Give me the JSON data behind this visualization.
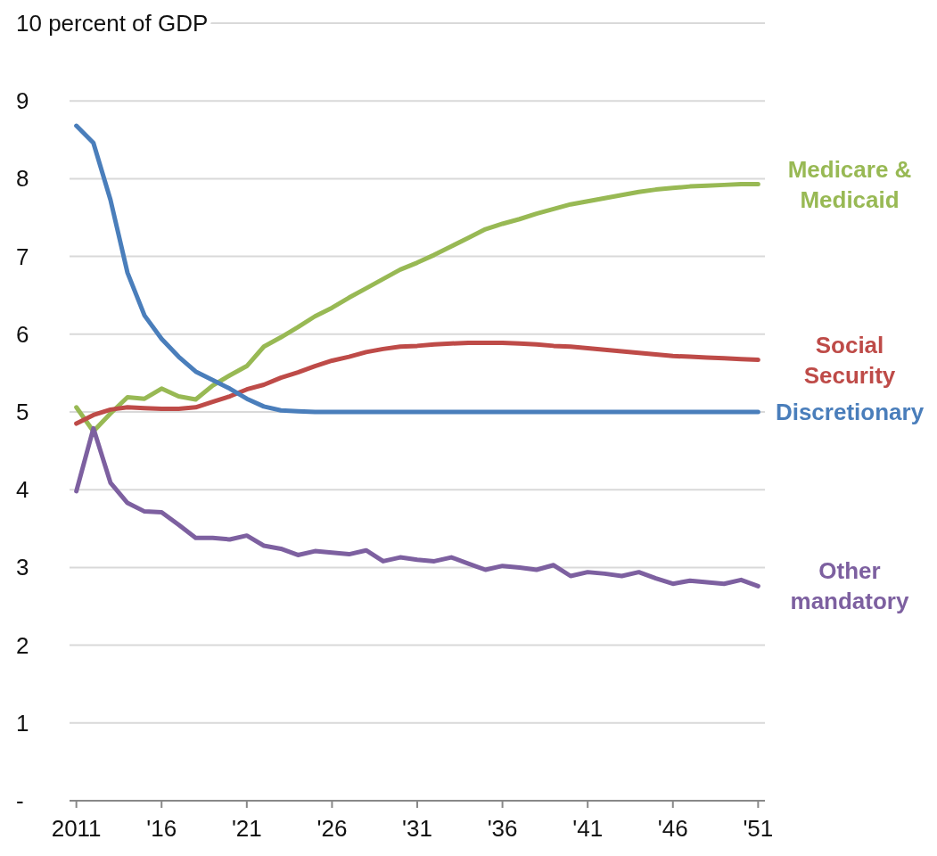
{
  "chart_data": {
    "type": "line",
    "x": [
      2011,
      2012,
      2013,
      2014,
      2015,
      2016,
      2017,
      2018,
      2019,
      2020,
      2021,
      2022,
      2023,
      2024,
      2025,
      2026,
      2027,
      2028,
      2029,
      2030,
      2031,
      2032,
      2033,
      2034,
      2035,
      2036,
      2037,
      2038,
      2039,
      2040,
      2041,
      2042,
      2043,
      2044,
      2045,
      2046,
      2047,
      2048,
      2049,
      2050,
      2051
    ],
    "series": [
      {
        "name": "Medicare & Medicaid",
        "color": "#98b954",
        "values": [
          5.06,
          4.75,
          4.98,
          5.19,
          5.17,
          5.3,
          5.2,
          5.16,
          5.34,
          5.47,
          5.59,
          5.84,
          5.96,
          6.09,
          6.23,
          6.34,
          6.47,
          6.59,
          6.71,
          6.83,
          6.92,
          7.02,
          7.13,
          7.24,
          7.35,
          7.42,
          7.48,
          7.55,
          7.61,
          7.67,
          7.71,
          7.75,
          7.79,
          7.83,
          7.86,
          7.88,
          7.9,
          7.91,
          7.92,
          7.93,
          7.93
        ]
      },
      {
        "name": "Social Security",
        "color": "#be4b48",
        "values": [
          4.85,
          4.96,
          5.03,
          5.06,
          5.05,
          5.04,
          5.04,
          5.06,
          5.13,
          5.2,
          5.29,
          5.35,
          5.44,
          5.51,
          5.59,
          5.66,
          5.71,
          5.77,
          5.81,
          5.84,
          5.85,
          5.87,
          5.88,
          5.89,
          5.89,
          5.89,
          5.88,
          5.87,
          5.85,
          5.84,
          5.82,
          5.8,
          5.78,
          5.76,
          5.74,
          5.72,
          5.71,
          5.7,
          5.69,
          5.68,
          5.67
        ]
      },
      {
        "name": "Discretionary",
        "color": "#4a7ebb",
        "values": [
          8.68,
          8.46,
          7.73,
          6.79,
          6.24,
          5.94,
          5.71,
          5.52,
          5.41,
          5.3,
          5.17,
          5.07,
          5.02,
          5.01,
          5.0,
          5.0,
          5.0,
          5.0,
          5.0,
          5.0,
          5.0,
          5.0,
          5.0,
          5.0,
          5.0,
          5.0,
          5.0,
          5.0,
          5.0,
          5.0,
          5.0,
          5.0,
          5.0,
          5.0,
          5.0,
          5.0,
          5.0,
          5.0,
          5.0,
          5.0,
          5.0
        ]
      },
      {
        "name": "Other mandatory",
        "color": "#7d60a0",
        "values": [
          3.98,
          4.79,
          4.09,
          3.83,
          3.72,
          3.71,
          3.55,
          3.38,
          3.38,
          3.36,
          3.41,
          3.28,
          3.24,
          3.16,
          3.21,
          3.19,
          3.17,
          3.22,
          3.08,
          3.13,
          3.1,
          3.08,
          3.13,
          3.05,
          2.97,
          3.02,
          3.0,
          2.97,
          3.03,
          2.89,
          2.94,
          2.92,
          2.89,
          2.94,
          2.86,
          2.79,
          2.83,
          2.81,
          2.79,
          2.84,
          2.76
        ]
      }
    ],
    "xlim": [
      2010.6,
      2051.4
    ],
    "xticks": [
      {
        "value": 2011,
        "label": "2011"
      },
      {
        "value": 2016,
        "label": "'16"
      },
      {
        "value": 2021,
        "label": "'21"
      },
      {
        "value": 2026,
        "label": "'26"
      },
      {
        "value": 2031,
        "label": "'31"
      },
      {
        "value": 2036,
        "label": "'36"
      },
      {
        "value": 2041,
        "label": "'41"
      },
      {
        "value": 2046,
        "label": "'46"
      },
      {
        "value": 2051,
        "label": "'51"
      }
    ],
    "ylim": [
      0,
      10
    ],
    "yticks": [
      {
        "value": 0,
        "label": "-"
      },
      1,
      2,
      3,
      4,
      5,
      6,
      7,
      8,
      9,
      {
        "value": 10,
        "label": "10 percent of GDP"
      }
    ],
    "grid": "y",
    "marker": "none",
    "line_style": "solid"
  }
}
